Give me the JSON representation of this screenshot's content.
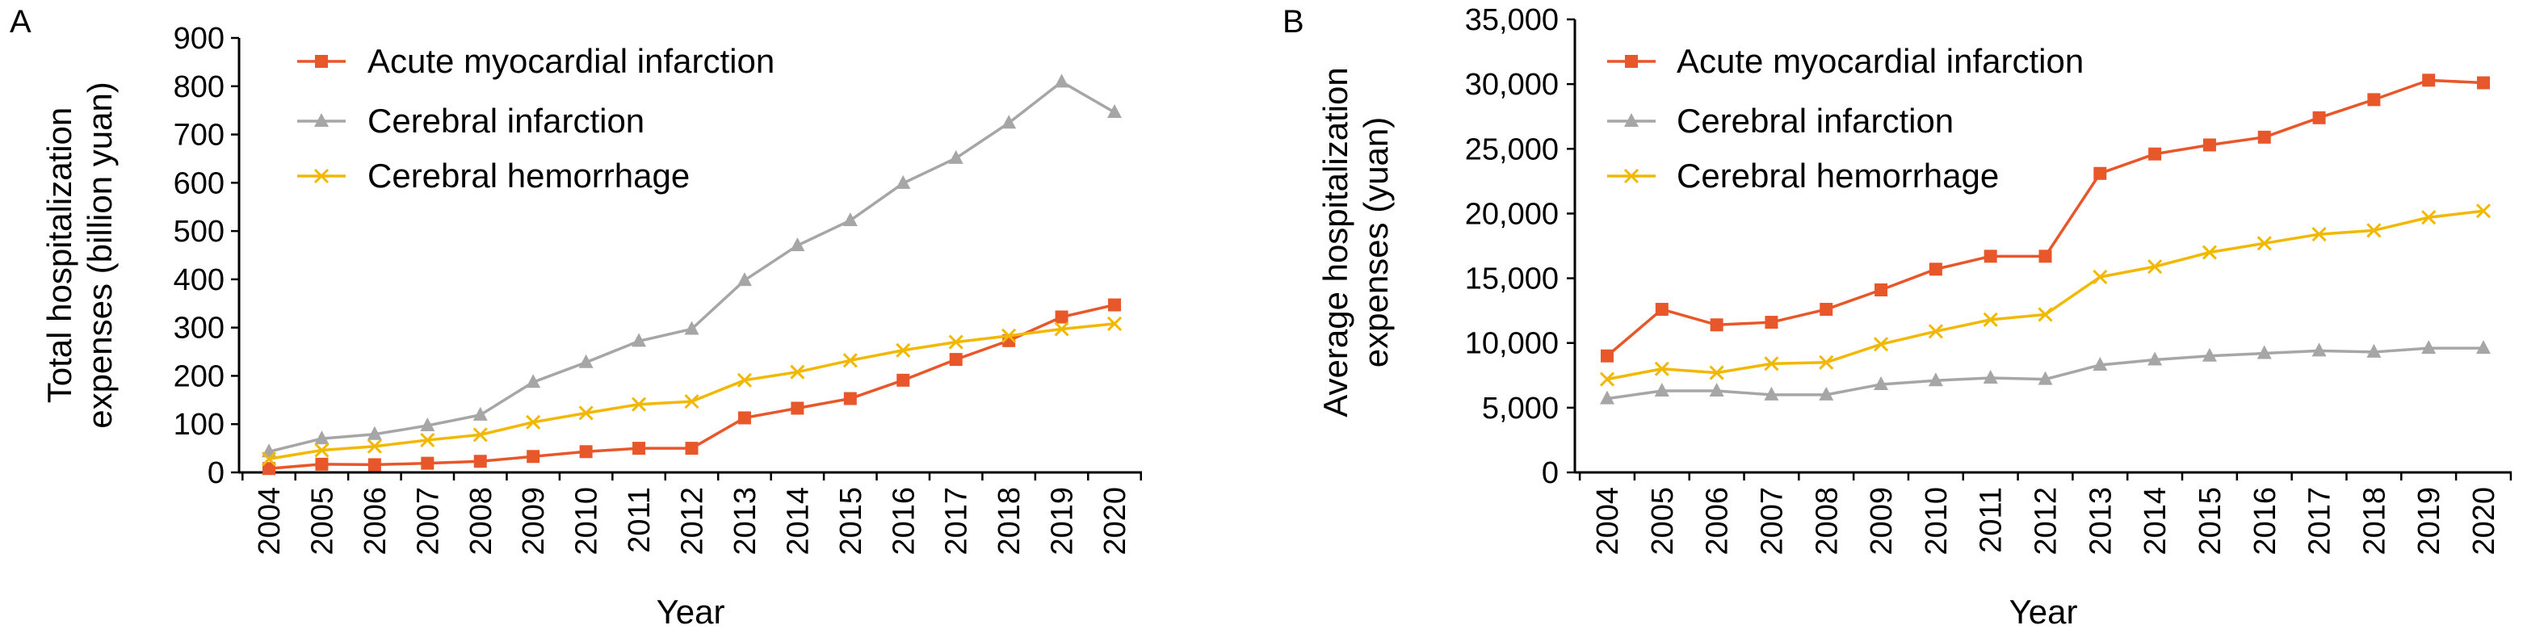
{
  "chart_data": [
    {
      "panel_label": "A",
      "type": "line",
      "ylabel": "Total hospitalization expenses (billion yuan)",
      "ylabel_lines": [
        "Total hospitalization",
        "expenses (billion yuan)"
      ],
      "xlabel": "Year",
      "ylim": [
        0,
        900
      ],
      "yticks": [
        0,
        100,
        200,
        300,
        400,
        500,
        600,
        700,
        800,
        900
      ],
      "ytick_labels": [
        "0",
        "100",
        "200",
        "300",
        "400",
        "500",
        "600",
        "700",
        "800",
        "900"
      ],
      "grid": false,
      "legend_position": "top-left",
      "x": [
        "2004",
        "2005",
        "2006",
        "2007",
        "2008",
        "2009",
        "2010",
        "2011",
        "2012",
        "2013",
        "2014",
        "2015",
        "2016",
        "2017",
        "2018",
        "2019",
        "2020"
      ],
      "series": [
        {
          "name": "Acute myocardial infarction",
          "marker": "square",
          "color": "#E8572A",
          "values": [
            8,
            17,
            16,
            19,
            23,
            33,
            43,
            50,
            50,
            113,
            133,
            153,
            191,
            234,
            273,
            322,
            347
          ]
        },
        {
          "name": "Cerebral infarction",
          "marker": "triangle",
          "color": "#A6A6A6",
          "values": [
            43,
            70,
            79,
            97,
            119,
            187,
            228,
            272,
            297,
            398,
            470,
            522,
            599,
            651,
            724,
            809,
            746
          ]
        },
        {
          "name": "Cerebral hemorrhage",
          "marker": "x",
          "color": "#F2B800",
          "values": [
            28,
            46,
            54,
            67,
            78,
            104,
            123,
            141,
            147,
            191,
            208,
            232,
            253,
            270,
            283,
            297,
            308
          ]
        }
      ]
    },
    {
      "panel_label": "B",
      "type": "line",
      "ylabel": "Average hospitalization expenses (yuan)",
      "ylabel_lines": [
        "Average hospitalization",
        "expenses (yuan)"
      ],
      "xlabel": "Year",
      "ylim": [
        0,
        35000
      ],
      "yticks": [
        0,
        5000,
        10000,
        15000,
        20000,
        25000,
        30000,
        35000
      ],
      "ytick_labels": [
        "0",
        "5,000",
        "10,000",
        "15,000",
        "20,000",
        "25,000",
        "30,000",
        "35,000"
      ],
      "grid": false,
      "legend_position": "top-left",
      "x": [
        "2004",
        "2005",
        "2006",
        "2007",
        "2008",
        "2009",
        "2010",
        "2011",
        "2012",
        "2013",
        "2014",
        "2015",
        "2016",
        "2017",
        "2018",
        "2019",
        "2020"
      ],
      "series": [
        {
          "name": "Acute myocardial infarction",
          "marker": "square",
          "color": "#E8572A",
          "values": [
            9000,
            12600,
            11400,
            11600,
            12600,
            14100,
            15700,
            16700,
            16700,
            23100,
            24600,
            25300,
            25900,
            27400,
            28800,
            30300,
            30100
          ]
        },
        {
          "name": "Cerebral infarction",
          "marker": "triangle",
          "color": "#A6A6A6",
          "values": [
            5700,
            6300,
            6300,
            6000,
            6000,
            6800,
            7100,
            7300,
            7200,
            8300,
            8700,
            9000,
            9200,
            9400,
            9300,
            9600,
            9600
          ]
        },
        {
          "name": "Cerebral hemorrhage",
          "marker": "x",
          "color": "#F2B800",
          "values": [
            7200,
            8000,
            7700,
            8400,
            8500,
            9900,
            10900,
            11800,
            12200,
            15100,
            15900,
            17000,
            17700,
            18400,
            18700,
            19700,
            20200
          ]
        }
      ]
    }
  ]
}
